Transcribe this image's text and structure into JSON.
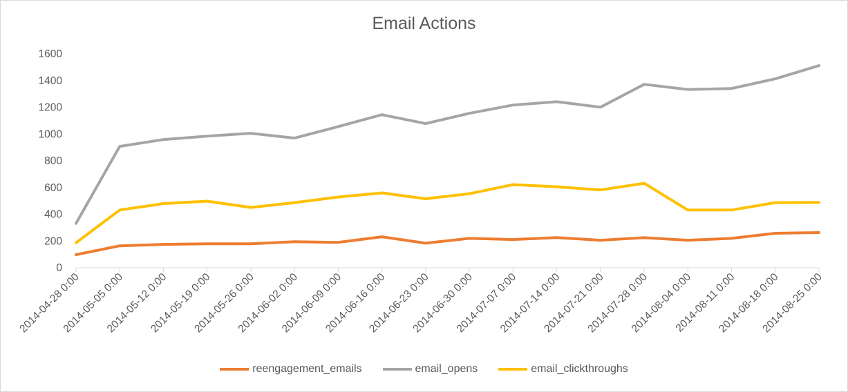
{
  "chart_data": {
    "type": "line",
    "title": "Email Actions",
    "xlabel": "",
    "ylabel": "",
    "ylim": [
      0,
      1600
    ],
    "yticks": [
      0,
      200,
      400,
      600,
      800,
      1000,
      1200,
      1400,
      1600
    ],
    "grid": false,
    "legend_position": "bottom",
    "categories": [
      "2014-04-28 0:00",
      "2014-05-05 0:00",
      "2014-05-12 0:00",
      "2014-05-19 0:00",
      "2014-05-26 0:00",
      "2014-06-02 0:00",
      "2014-06-09 0:00",
      "2014-06-16 0:00",
      "2014-06-23 0:00",
      "2014-06-30 0:00",
      "2014-07-07 0:00",
      "2014-07-14 0:00",
      "2014-07-21 0:00",
      "2014-07-28 0:00",
      "2014-08-04 0:00",
      "2014-08-11 0:00",
      "2014-08-18 0:00",
      "2014-08-25 0:00"
    ],
    "series": [
      {
        "name": "reengagement_emails",
        "color": "#ed7d31",
        "values": [
          98,
          164,
          175,
          179,
          179,
          195,
          190,
          232,
          184,
          220,
          211,
          226,
          206,
          225,
          206,
          220,
          258,
          263
        ]
      },
      {
        "name": "email_opens",
        "color": "#a5a5a5",
        "values": [
          332,
          908,
          959,
          984,
          1006,
          970,
          1056,
          1145,
          1078,
          1155,
          1217,
          1242,
          1201,
          1372,
          1333,
          1341,
          1413,
          1512
        ]
      },
      {
        "name": "email_clickthroughs",
        "color": "#ffc000",
        "values": [
          187,
          432,
          480,
          498,
          451,
          487,
          529,
          560,
          516,
          554,
          622,
          606,
          582,
          632,
          432,
          432,
          487,
          489
        ]
      }
    ]
  }
}
